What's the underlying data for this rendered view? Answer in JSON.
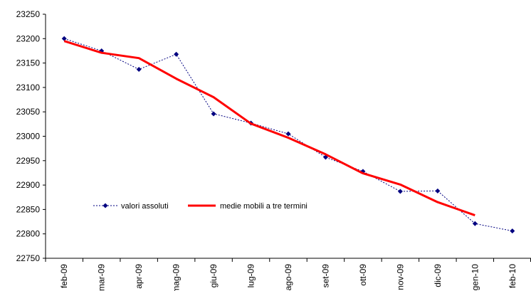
{
  "chart_data": {
    "type": "line",
    "categories": [
      "feb-09",
      "mar-09",
      "apr-09",
      "mag-09",
      "giu-09",
      "lug-09",
      "ago-09",
      "set-09",
      "ott-09",
      "nov-09",
      "dic-09",
      "gen-10",
      "feb-10"
    ],
    "ylim": [
      22750,
      23250
    ],
    "y_ticks": [
      22750,
      22800,
      22850,
      22900,
      22950,
      23000,
      23050,
      23100,
      23150,
      23200,
      23250
    ],
    "grid": false,
    "legend_position": "center-left",
    "series": [
      {
        "name": "valori assoluti",
        "style": "dotted-markers",
        "color": "#000080",
        "values": [
          23200,
          23175,
          23137,
          23168,
          23046,
          23027,
          23005,
          22957,
          22928,
          22887,
          22888,
          22821,
          22806
        ]
      },
      {
        "name": "medie mobili a tre termini",
        "style": "solid",
        "color": "#ff0000",
        "values": [
          23195,
          23171,
          23160,
          23118,
          23080,
          23026,
          22997,
          22963,
          22924,
          22901,
          22865,
          22838,
          null
        ]
      }
    ]
  }
}
